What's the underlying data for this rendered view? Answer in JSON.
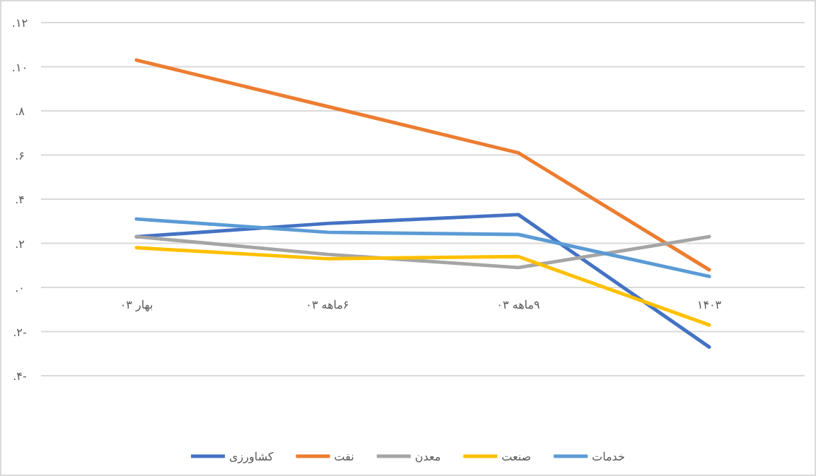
{
  "chart_data": {
    "type": "line",
    "categories": [
      "بهار ۰۳",
      "۶ماهه ۰۳",
      "۹ماهه ۰۳",
      "۱۴۰۳"
    ],
    "ylim": [
      -4,
      12
    ],
    "yticks": [
      {
        "value": -4,
        "label": "-۴."
      },
      {
        "value": -2,
        "label": "-۲."
      },
      {
        "value": 0,
        "label": "۰."
      },
      {
        "value": 2,
        "label": "۲."
      },
      {
        "value": 4,
        "label": "۴."
      },
      {
        "value": 6,
        "label": "۶."
      },
      {
        "value": 8,
        "label": "۸."
      },
      {
        "value": 10,
        "label": "۱۰."
      },
      {
        "value": 12,
        "label": "۱۲."
      }
    ],
    "grid": "y",
    "legend": "bottom",
    "series": [
      {
        "name": "کشاورزی",
        "color": "#4472c4",
        "values": [
          2.3,
          2.9,
          3.3,
          -2.7
        ]
      },
      {
        "name": "نفت",
        "color": "#ed7d31",
        "values": [
          10.3,
          8.2,
          6.1,
          0.8
        ]
      },
      {
        "name": "معدن",
        "color": "#a5a5a5",
        "values": [
          2.3,
          1.5,
          0.9,
          2.3
        ]
      },
      {
        "name": "صنعت",
        "color": "#ffc000",
        "values": [
          1.8,
          1.3,
          1.4,
          -1.7
        ]
      },
      {
        "name": "خدمات",
        "color": "#5b9bd5",
        "values": [
          3.1,
          2.5,
          2.4,
          0.5
        ]
      }
    ]
  }
}
